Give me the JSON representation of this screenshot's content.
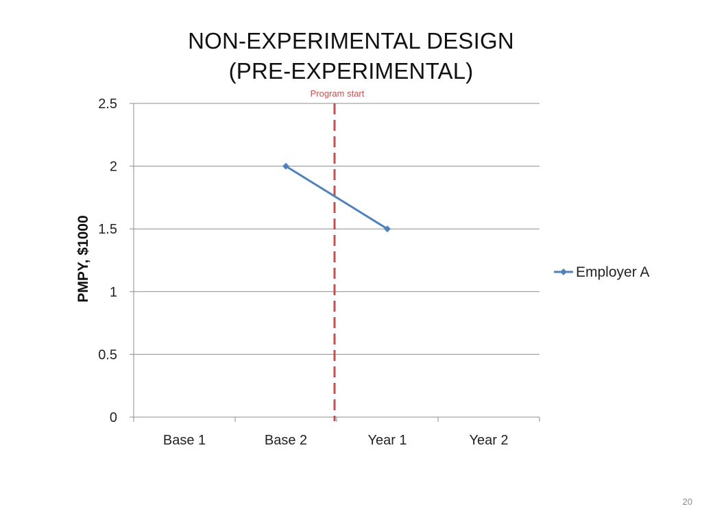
{
  "slide": {
    "title_line1": "NON-EXPERIMENTAL  DESIGN",
    "title_line2": "(PRE-EXPERIMENTAL)",
    "page_number": "20"
  },
  "chart_data": {
    "type": "line",
    "title": "",
    "xlabel": "",
    "ylabel": "PMPY, $1000",
    "categories": [
      "Base 1",
      "Base 2",
      "Year 1",
      "Year 2"
    ],
    "ylim": [
      0,
      2.5
    ],
    "yticks": [
      0,
      0.5,
      1,
      1.5,
      2,
      2.5
    ],
    "ytick_labels": [
      "0",
      "0.5",
      "1",
      "1.5",
      "2",
      "2.5"
    ],
    "grid": true,
    "legend_position": "right",
    "series": [
      {
        "name": "Employer A",
        "values": [
          null,
          2,
          1.5,
          null
        ],
        "color": "#4F81BD",
        "marker": "diamond"
      }
    ],
    "annotations": [
      {
        "type": "vertical-dashed-line",
        "label": "Program start",
        "x_between": [
          "Base 2",
          "Year 1"
        ],
        "color": "#C0504D"
      }
    ]
  }
}
